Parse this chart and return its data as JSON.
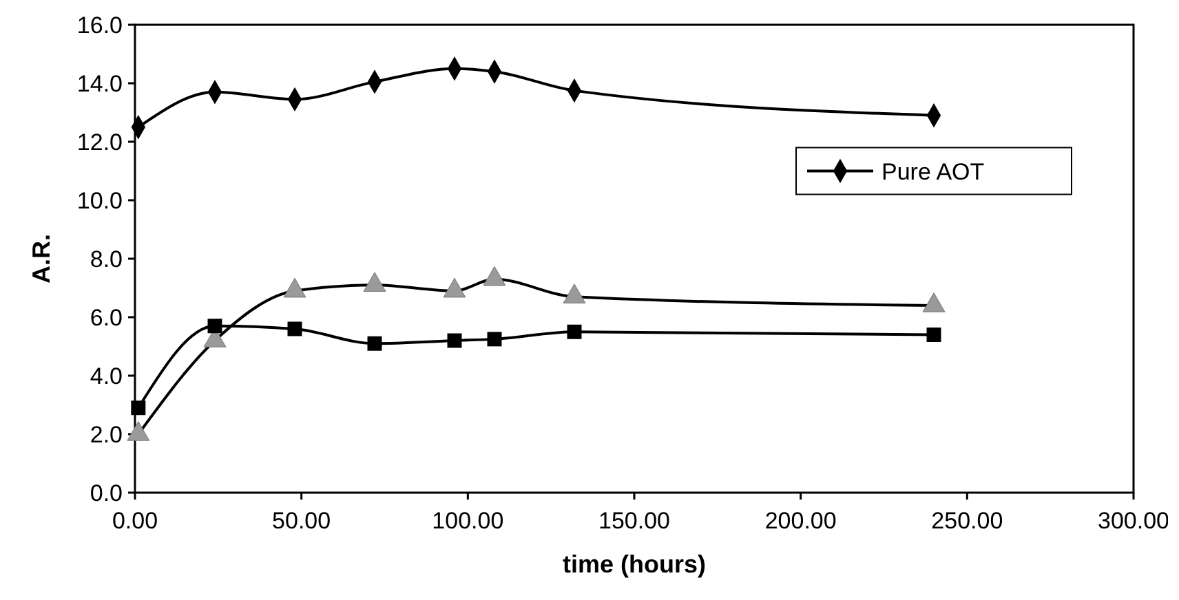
{
  "chart_data": {
    "type": "line",
    "xlabel": "time (hours)",
    "ylabel": "A.R.",
    "xlim": [
      0,
      300
    ],
    "xticks": [
      {
        "value": 0,
        "label": "0.00"
      },
      {
        "value": 50,
        "label": "50.00"
      },
      {
        "value": 100,
        "label": "100.00"
      },
      {
        "value": 150,
        "label": "150.00"
      },
      {
        "value": 200,
        "label": "200.00"
      },
      {
        "value": 250,
        "label": "250.00"
      },
      {
        "value": 300,
        "label": "300.00"
      }
    ],
    "ylim": [
      0,
      16
    ],
    "yticks": [
      {
        "value": 0,
        "label": "0.0"
      },
      {
        "value": 2,
        "label": "2.0"
      },
      {
        "value": 4,
        "label": "4.0"
      },
      {
        "value": 6,
        "label": "6.0"
      },
      {
        "value": 8,
        "label": "8.0"
      },
      {
        "value": 10,
        "label": "10.0"
      },
      {
        "value": 12,
        "label": "12.0"
      },
      {
        "value": 14,
        "label": "14.0"
      },
      {
        "value": 16,
        "label": "16.0"
      }
    ],
    "grid": false,
    "legend": "right",
    "x": [
      1,
      24,
      48,
      72,
      96,
      108,
      132,
      240
    ],
    "series": [
      {
        "name": "Pure AOT",
        "color": "#000000",
        "marker": "diamond",
        "values": [
          12.5,
          13.7,
          13.45,
          14.05,
          14.5,
          14.4,
          13.75,
          12.9
        ]
      },
      {
        "color": "#9a9a9a",
        "marker": "triangle",
        "values": [
          2.0,
          5.2,
          6.9,
          7.1,
          6.9,
          7.3,
          6.7,
          6.4
        ]
      },
      {
        "color": "#000000",
        "marker": "square",
        "values": [
          2.9,
          5.7,
          5.6,
          5.1,
          5.2,
          5.25,
          5.5,
          5.4
        ]
      }
    ]
  }
}
